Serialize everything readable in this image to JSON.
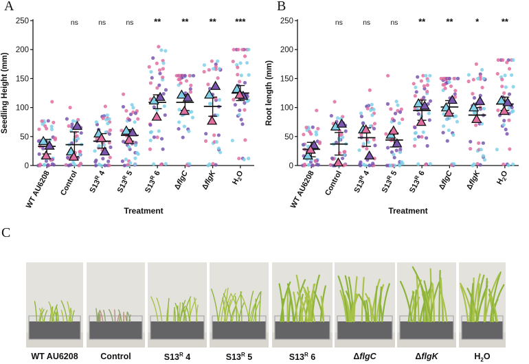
{
  "panels": {
    "letter_a": "A",
    "letter_b": "B",
    "letter_c": "C"
  },
  "colors": {
    "blue": "#7fd0e8",
    "purple": "#7a56b0",
    "pink": "#e06ea0",
    "axis": "#111111"
  },
  "chart_data": [
    {
      "id": "A",
      "type": "scatter",
      "title": "",
      "xlabel": "Treatment",
      "ylabel": "Seedling Height (mm)",
      "ylim": [
        0,
        250
      ],
      "yticks": [
        "0",
        "50",
        "100",
        "150",
        "200",
        "250"
      ],
      "categories": [
        "WT AU6208",
        "Control",
        "S13R 4",
        "S13R 5",
        "S13R 6",
        "ΔflgC",
        "ΔflgK",
        "H2O"
      ],
      "significance": [
        "",
        "ns",
        "ns",
        "ns",
        "**",
        "**",
        "**",
        "***"
      ],
      "mean": [
        33,
        36,
        42,
        52,
        109,
        109,
        102,
        125
      ],
      "ci_low": [
        20,
        15,
        30,
        42,
        98,
        95,
        85,
        112
      ],
      "ci_high": [
        45,
        58,
        55,
        62,
        122,
        122,
        118,
        138
      ],
      "replicate_means": {
        "blue": [
          42,
          24,
          55,
          60,
          112,
          122,
          122,
          132
        ],
        "purple": [
          34,
          68,
          24,
          57,
          118,
          117,
          137,
          120
        ],
        "pink": [
          17,
          15,
          47,
          44,
          84,
          94,
          77,
          122
        ]
      },
      "point_range": [
        [
          0,
          110
        ],
        [
          0,
          100
        ],
        [
          0,
          102
        ],
        [
          0,
          123
        ],
        [
          0,
          205
        ],
        [
          0,
          155
        ],
        [
          0,
          180
        ],
        [
          10,
          200
        ]
      ]
    },
    {
      "id": "B",
      "type": "scatter",
      "title": "",
      "xlabel": "Treatment",
      "ylabel": "Root length (mm)",
      "ylim": [
        0,
        250
      ],
      "yticks": [
        "0",
        "50",
        "100",
        "150",
        "200",
        "250"
      ],
      "categories": [
        "WT AU6208",
        "Control",
        "S13R 4",
        "S13R 5",
        "S13R 6",
        "ΔflgC",
        "ΔflgK",
        "H2O"
      ],
      "significance": [
        "",
        "ns",
        "ns",
        "ns",
        "**",
        "**",
        "*",
        "**"
      ],
      "mean": [
        28,
        37,
        48,
        44,
        95,
        101,
        87,
        106
      ],
      "ci_low": [
        15,
        18,
        33,
        32,
        78,
        90,
        75,
        95
      ],
      "ci_high": [
        40,
        57,
        65,
        56,
        113,
        112,
        100,
        118
      ],
      "replicate_means": {
        "blue": [
          17,
          67,
          62,
          53,
          107,
          100,
          100,
          112
        ],
        "purple": [
          35,
          72,
          17,
          38,
          103,
          113,
          111,
          109
        ],
        "pink": [
          27,
          5,
          62,
          60,
          75,
          91,
          80,
          94
        ]
      },
      "point_range": [
        [
          0,
          95
        ],
        [
          0,
          110
        ],
        [
          0,
          130
        ],
        [
          0,
          155
        ],
        [
          0,
          155
        ],
        [
          0,
          150
        ],
        [
          0,
          175
        ],
        [
          0,
          182
        ]
      ]
    }
  ],
  "photos": [
    {
      "label_main": "WT AU6208",
      "label_sup": "",
      "label_tail": "",
      "italic": false,
      "growth": 0.35
    },
    {
      "label_main": "Control",
      "label_sup": "",
      "label_tail": "",
      "italic": false,
      "growth": 0.22
    },
    {
      "label_main": "S13",
      "label_sup": "R",
      "label_tail": " 4",
      "italic": false,
      "growth": 0.4
    },
    {
      "label_main": "S13",
      "label_sup": "R",
      "label_tail": " 5",
      "italic": false,
      "growth": 0.55
    },
    {
      "label_main": "S13",
      "label_sup": "R",
      "label_tail": " 6",
      "italic": false,
      "growth": 0.78
    },
    {
      "label_main": "Δ",
      "label_sup": "",
      "label_tail": "flgC",
      "italic": true,
      "growth": 0.75
    },
    {
      "label_main": "Δ",
      "label_sup": "",
      "label_tail": "flgK",
      "italic": true,
      "growth": 0.9
    },
    {
      "label_main": "H",
      "label_sup": "",
      "label_tail": "2O",
      "italic": false,
      "growth": 0.8
    }
  ]
}
